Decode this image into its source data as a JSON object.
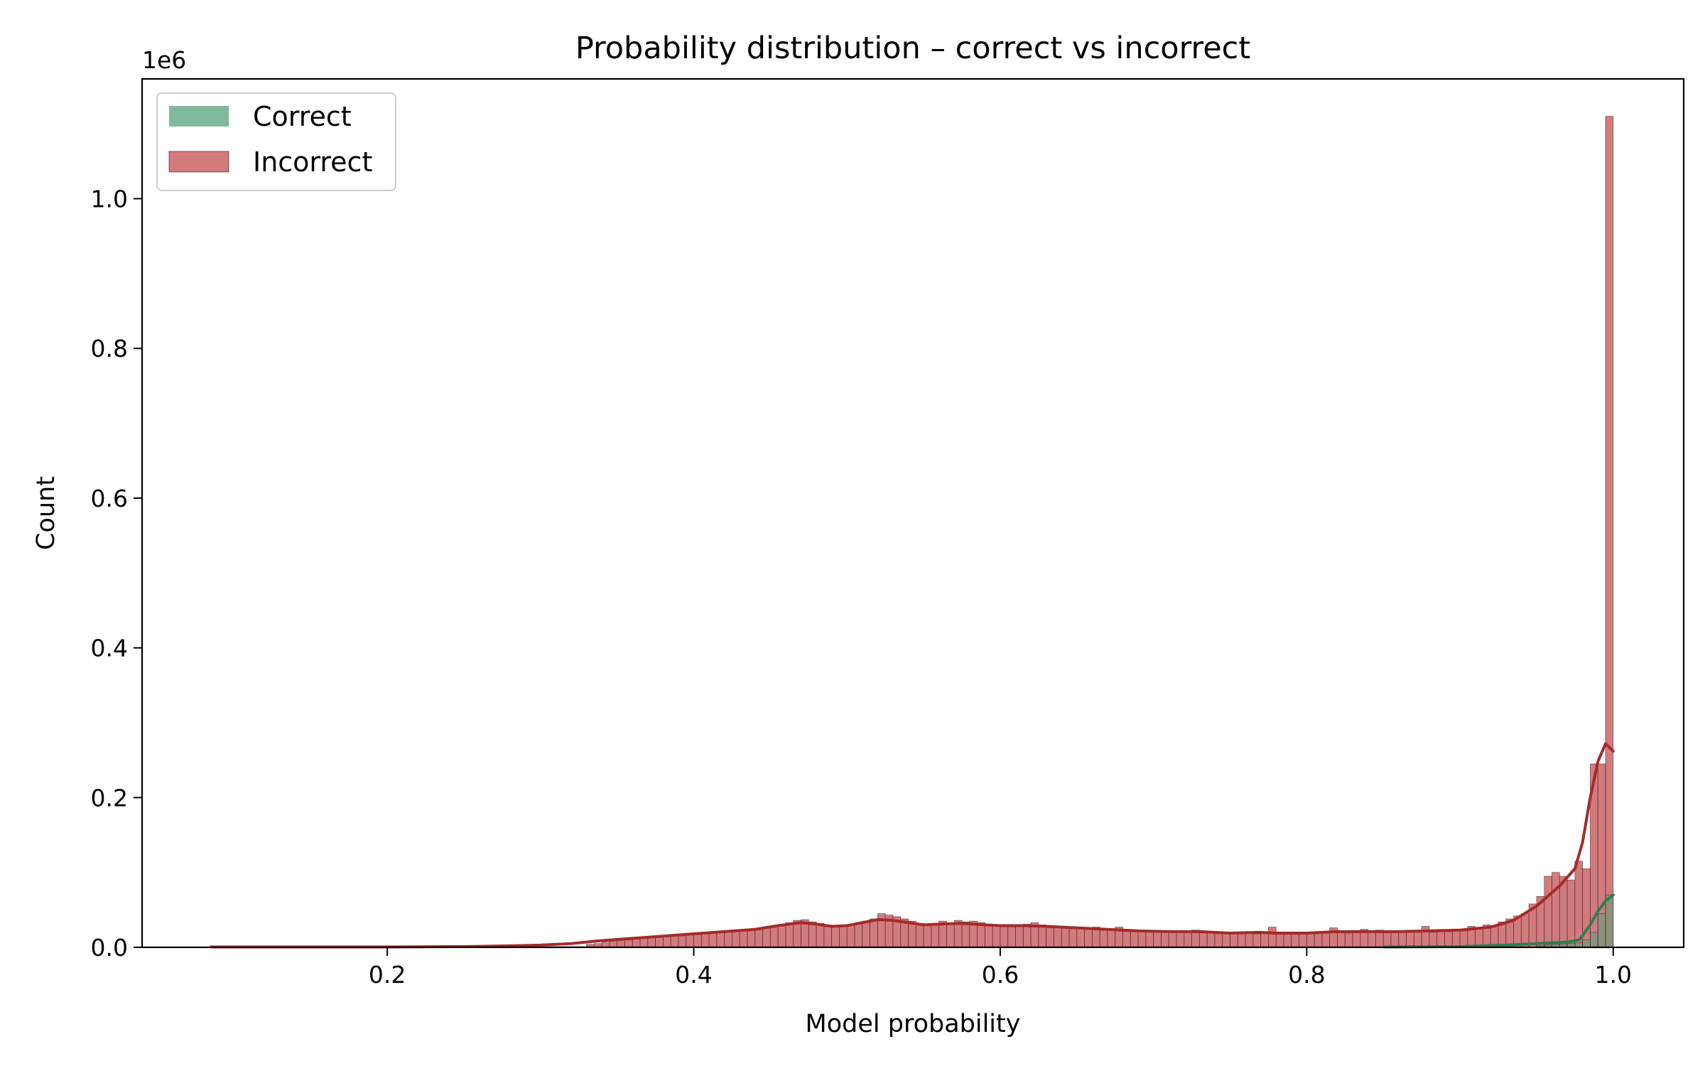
{
  "chart_data": {
    "type": "histogram",
    "title": "Probability distribution – correct vs incorrect",
    "xlabel": "Model probability",
    "ylabel": "Count",
    "y_offset_label": "1e6",
    "xlim": [
      0.04,
      1.046
    ],
    "ylim": [
      0,
      1.16
    ],
    "x_ticks": [
      0.2,
      0.4,
      0.6,
      0.8,
      1.0
    ],
    "x_tick_labels": [
      "0.2",
      "0.4",
      "0.6",
      "0.8",
      "1.0"
    ],
    "y_ticks": [
      0.0,
      0.2,
      0.4,
      0.6,
      0.8,
      1.0
    ],
    "y_tick_labels": [
      "0.0",
      "0.2",
      "0.4",
      "0.6",
      "0.8",
      "1.0"
    ],
    "bin_range": [
      0.085,
      1.0
    ],
    "bin_width": 0.005,
    "grid": false,
    "legend_position": "top-left",
    "legend": [
      {
        "name": "Correct",
        "color": "#55a27a"
      },
      {
        "name": "Incorrect",
        "color": "#c44e52"
      }
    ],
    "series": [
      {
        "name": "Incorrect",
        "color": "#c44e52",
        "kde_color": "#a52a2a",
        "bins": [
          {
            "x": 0.33,
            "y": 0.004
          },
          {
            "x": 0.335,
            "y": 0.005
          },
          {
            "x": 0.34,
            "y": 0.007
          },
          {
            "x": 0.345,
            "y": 0.008
          },
          {
            "x": 0.35,
            "y": 0.009
          },
          {
            "x": 0.355,
            "y": 0.01
          },
          {
            "x": 0.36,
            "y": 0.011
          },
          {
            "x": 0.365,
            "y": 0.012
          },
          {
            "x": 0.37,
            "y": 0.013
          },
          {
            "x": 0.375,
            "y": 0.014
          },
          {
            "x": 0.38,
            "y": 0.015
          },
          {
            "x": 0.385,
            "y": 0.016
          },
          {
            "x": 0.39,
            "y": 0.016
          },
          {
            "x": 0.395,
            "y": 0.017
          },
          {
            "x": 0.4,
            "y": 0.018
          },
          {
            "x": 0.405,
            "y": 0.019
          },
          {
            "x": 0.41,
            "y": 0.02
          },
          {
            "x": 0.415,
            "y": 0.021
          },
          {
            "x": 0.42,
            "y": 0.021
          },
          {
            "x": 0.425,
            "y": 0.022
          },
          {
            "x": 0.43,
            "y": 0.022
          },
          {
            "x": 0.435,
            "y": 0.023
          },
          {
            "x": 0.44,
            "y": 0.024
          },
          {
            "x": 0.445,
            "y": 0.026
          },
          {
            "x": 0.45,
            "y": 0.028
          },
          {
            "x": 0.455,
            "y": 0.03
          },
          {
            "x": 0.46,
            "y": 0.033
          },
          {
            "x": 0.465,
            "y": 0.036
          },
          {
            "x": 0.47,
            "y": 0.037
          },
          {
            "x": 0.475,
            "y": 0.034
          },
          {
            "x": 0.48,
            "y": 0.032
          },
          {
            "x": 0.485,
            "y": 0.03
          },
          {
            "x": 0.49,
            "y": 0.029
          },
          {
            "x": 0.495,
            "y": 0.028
          },
          {
            "x": 0.5,
            "y": 0.03
          },
          {
            "x": 0.505,
            "y": 0.031
          },
          {
            "x": 0.51,
            "y": 0.035
          },
          {
            "x": 0.515,
            "y": 0.038
          },
          {
            "x": 0.52,
            "y": 0.045
          },
          {
            "x": 0.525,
            "y": 0.043
          },
          {
            "x": 0.53,
            "y": 0.041
          },
          {
            "x": 0.535,
            "y": 0.038
          },
          {
            "x": 0.54,
            "y": 0.035
          },
          {
            "x": 0.545,
            "y": 0.032
          },
          {
            "x": 0.55,
            "y": 0.03
          },
          {
            "x": 0.555,
            "y": 0.031
          },
          {
            "x": 0.56,
            "y": 0.035
          },
          {
            "x": 0.565,
            "y": 0.032
          },
          {
            "x": 0.57,
            "y": 0.036
          },
          {
            "x": 0.575,
            "y": 0.034
          },
          {
            "x": 0.58,
            "y": 0.035
          },
          {
            "x": 0.585,
            "y": 0.033
          },
          {
            "x": 0.59,
            "y": 0.031
          },
          {
            "x": 0.595,
            "y": 0.029
          },
          {
            "x": 0.6,
            "y": 0.028
          },
          {
            "x": 0.605,
            "y": 0.03
          },
          {
            "x": 0.61,
            "y": 0.028
          },
          {
            "x": 0.615,
            "y": 0.031
          },
          {
            "x": 0.62,
            "y": 0.033
          },
          {
            "x": 0.625,
            "y": 0.03
          },
          {
            "x": 0.63,
            "y": 0.029
          },
          {
            "x": 0.635,
            "y": 0.028
          },
          {
            "x": 0.64,
            "y": 0.027
          },
          {
            "x": 0.645,
            "y": 0.026
          },
          {
            "x": 0.65,
            "y": 0.025
          },
          {
            "x": 0.655,
            "y": 0.024
          },
          {
            "x": 0.66,
            "y": 0.027
          },
          {
            "x": 0.665,
            "y": 0.025
          },
          {
            "x": 0.67,
            "y": 0.024
          },
          {
            "x": 0.675,
            "y": 0.027
          },
          {
            "x": 0.68,
            "y": 0.024
          },
          {
            "x": 0.685,
            "y": 0.023
          },
          {
            "x": 0.69,
            "y": 0.022
          },
          {
            "x": 0.695,
            "y": 0.021
          },
          {
            "x": 0.7,
            "y": 0.022
          },
          {
            "x": 0.705,
            "y": 0.021
          },
          {
            "x": 0.71,
            "y": 0.02
          },
          {
            "x": 0.715,
            "y": 0.022
          },
          {
            "x": 0.72,
            "y": 0.021
          },
          {
            "x": 0.725,
            "y": 0.023
          },
          {
            "x": 0.73,
            "y": 0.02
          },
          {
            "x": 0.735,
            "y": 0.019
          },
          {
            "x": 0.74,
            "y": 0.02
          },
          {
            "x": 0.745,
            "y": 0.019
          },
          {
            "x": 0.75,
            "y": 0.018
          },
          {
            "x": 0.755,
            "y": 0.02
          },
          {
            "x": 0.76,
            "y": 0.019
          },
          {
            "x": 0.765,
            "y": 0.018
          },
          {
            "x": 0.77,
            "y": 0.02
          },
          {
            "x": 0.775,
            "y": 0.027
          },
          {
            "x": 0.78,
            "y": 0.019
          },
          {
            "x": 0.785,
            "y": 0.018
          },
          {
            "x": 0.79,
            "y": 0.019
          },
          {
            "x": 0.795,
            "y": 0.018
          },
          {
            "x": 0.8,
            "y": 0.019
          },
          {
            "x": 0.805,
            "y": 0.021
          },
          {
            "x": 0.81,
            "y": 0.02
          },
          {
            "x": 0.815,
            "y": 0.026
          },
          {
            "x": 0.82,
            "y": 0.02
          },
          {
            "x": 0.825,
            "y": 0.019
          },
          {
            "x": 0.83,
            "y": 0.022
          },
          {
            "x": 0.835,
            "y": 0.024
          },
          {
            "x": 0.84,
            "y": 0.02
          },
          {
            "x": 0.845,
            "y": 0.023
          },
          {
            "x": 0.85,
            "y": 0.021
          },
          {
            "x": 0.855,
            "y": 0.02
          },
          {
            "x": 0.86,
            "y": 0.022
          },
          {
            "x": 0.865,
            "y": 0.023
          },
          {
            "x": 0.87,
            "y": 0.021
          },
          {
            "x": 0.875,
            "y": 0.028
          },
          {
            "x": 0.88,
            "y": 0.02
          },
          {
            "x": 0.885,
            "y": 0.022
          },
          {
            "x": 0.89,
            "y": 0.021
          },
          {
            "x": 0.895,
            "y": 0.023
          },
          {
            "x": 0.9,
            "y": 0.022
          },
          {
            "x": 0.905,
            "y": 0.028
          },
          {
            "x": 0.91,
            "y": 0.025
          },
          {
            "x": 0.915,
            "y": 0.03
          },
          {
            "x": 0.92,
            "y": 0.028
          },
          {
            "x": 0.925,
            "y": 0.034
          },
          {
            "x": 0.93,
            "y": 0.038
          },
          {
            "x": 0.935,
            "y": 0.042
          },
          {
            "x": 0.94,
            "y": 0.045
          },
          {
            "x": 0.945,
            "y": 0.058
          },
          {
            "x": 0.95,
            "y": 0.068
          },
          {
            "x": 0.955,
            "y": 0.095
          },
          {
            "x": 0.96,
            "y": 0.1
          },
          {
            "x": 0.965,
            "y": 0.095
          },
          {
            "x": 0.97,
            "y": 0.09
          },
          {
            "x": 0.975,
            "y": 0.115
          },
          {
            "x": 0.98,
            "y": 0.105
          },
          {
            "x": 0.985,
            "y": 0.245
          },
          {
            "x": 0.99,
            "y": 0.245
          },
          {
            "x": 0.995,
            "y": 1.11
          }
        ],
        "kde": [
          [
            0.085,
            0.0005
          ],
          [
            0.15,
            0.0005
          ],
          [
            0.2,
            0.0005
          ],
          [
            0.25,
            0.001
          ],
          [
            0.28,
            0.002
          ],
          [
            0.3,
            0.003
          ],
          [
            0.32,
            0.005
          ],
          [
            0.34,
            0.009
          ],
          [
            0.36,
            0.012
          ],
          [
            0.38,
            0.015
          ],
          [
            0.4,
            0.018
          ],
          [
            0.42,
            0.021
          ],
          [
            0.44,
            0.024
          ],
          [
            0.455,
            0.029
          ],
          [
            0.47,
            0.033
          ],
          [
            0.48,
            0.031
          ],
          [
            0.49,
            0.028
          ],
          [
            0.5,
            0.029
          ],
          [
            0.51,
            0.033
          ],
          [
            0.52,
            0.037
          ],
          [
            0.53,
            0.036
          ],
          [
            0.54,
            0.033
          ],
          [
            0.55,
            0.03
          ],
          [
            0.56,
            0.031
          ],
          [
            0.575,
            0.032
          ],
          [
            0.59,
            0.03
          ],
          [
            0.6,
            0.029
          ],
          [
            0.615,
            0.029
          ],
          [
            0.63,
            0.028
          ],
          [
            0.65,
            0.026
          ],
          [
            0.67,
            0.024
          ],
          [
            0.69,
            0.022
          ],
          [
            0.71,
            0.021
          ],
          [
            0.73,
            0.021
          ],
          [
            0.75,
            0.019
          ],
          [
            0.77,
            0.02
          ],
          [
            0.78,
            0.019
          ],
          [
            0.8,
            0.019
          ],
          [
            0.82,
            0.021
          ],
          [
            0.84,
            0.021
          ],
          [
            0.86,
            0.021
          ],
          [
            0.88,
            0.022
          ],
          [
            0.9,
            0.023
          ],
          [
            0.92,
            0.027
          ],
          [
            0.935,
            0.036
          ],
          [
            0.95,
            0.055
          ],
          [
            0.965,
            0.082
          ],
          [
            0.975,
            0.105
          ],
          [
            0.98,
            0.14
          ],
          [
            0.985,
            0.2
          ],
          [
            0.99,
            0.248
          ],
          [
            0.995,
            0.272
          ],
          [
            1.0,
            0.262
          ]
        ]
      },
      {
        "name": "Correct",
        "color": "#55a27a",
        "kde_color": "#2e7d4f",
        "bins": [
          {
            "x": 0.95,
            "y": 0.002
          },
          {
            "x": 0.955,
            "y": 0.003
          },
          {
            "x": 0.96,
            "y": 0.004
          },
          {
            "x": 0.965,
            "y": 0.004
          },
          {
            "x": 0.97,
            "y": 0.005
          },
          {
            "x": 0.975,
            "y": 0.006
          },
          {
            "x": 0.98,
            "y": 0.01
          },
          {
            "x": 0.985,
            "y": 0.02
          },
          {
            "x": 0.99,
            "y": 0.045
          },
          {
            "x": 0.995,
            "y": 0.07
          }
        ],
        "kde": [
          [
            0.85,
            0.0005
          ],
          [
            0.9,
            0.001
          ],
          [
            0.93,
            0.003
          ],
          [
            0.95,
            0.005
          ],
          [
            0.97,
            0.007
          ],
          [
            0.978,
            0.01
          ],
          [
            0.985,
            0.03
          ],
          [
            0.99,
            0.048
          ],
          [
            0.995,
            0.062
          ],
          [
            1.0,
            0.07
          ]
        ]
      }
    ]
  }
}
